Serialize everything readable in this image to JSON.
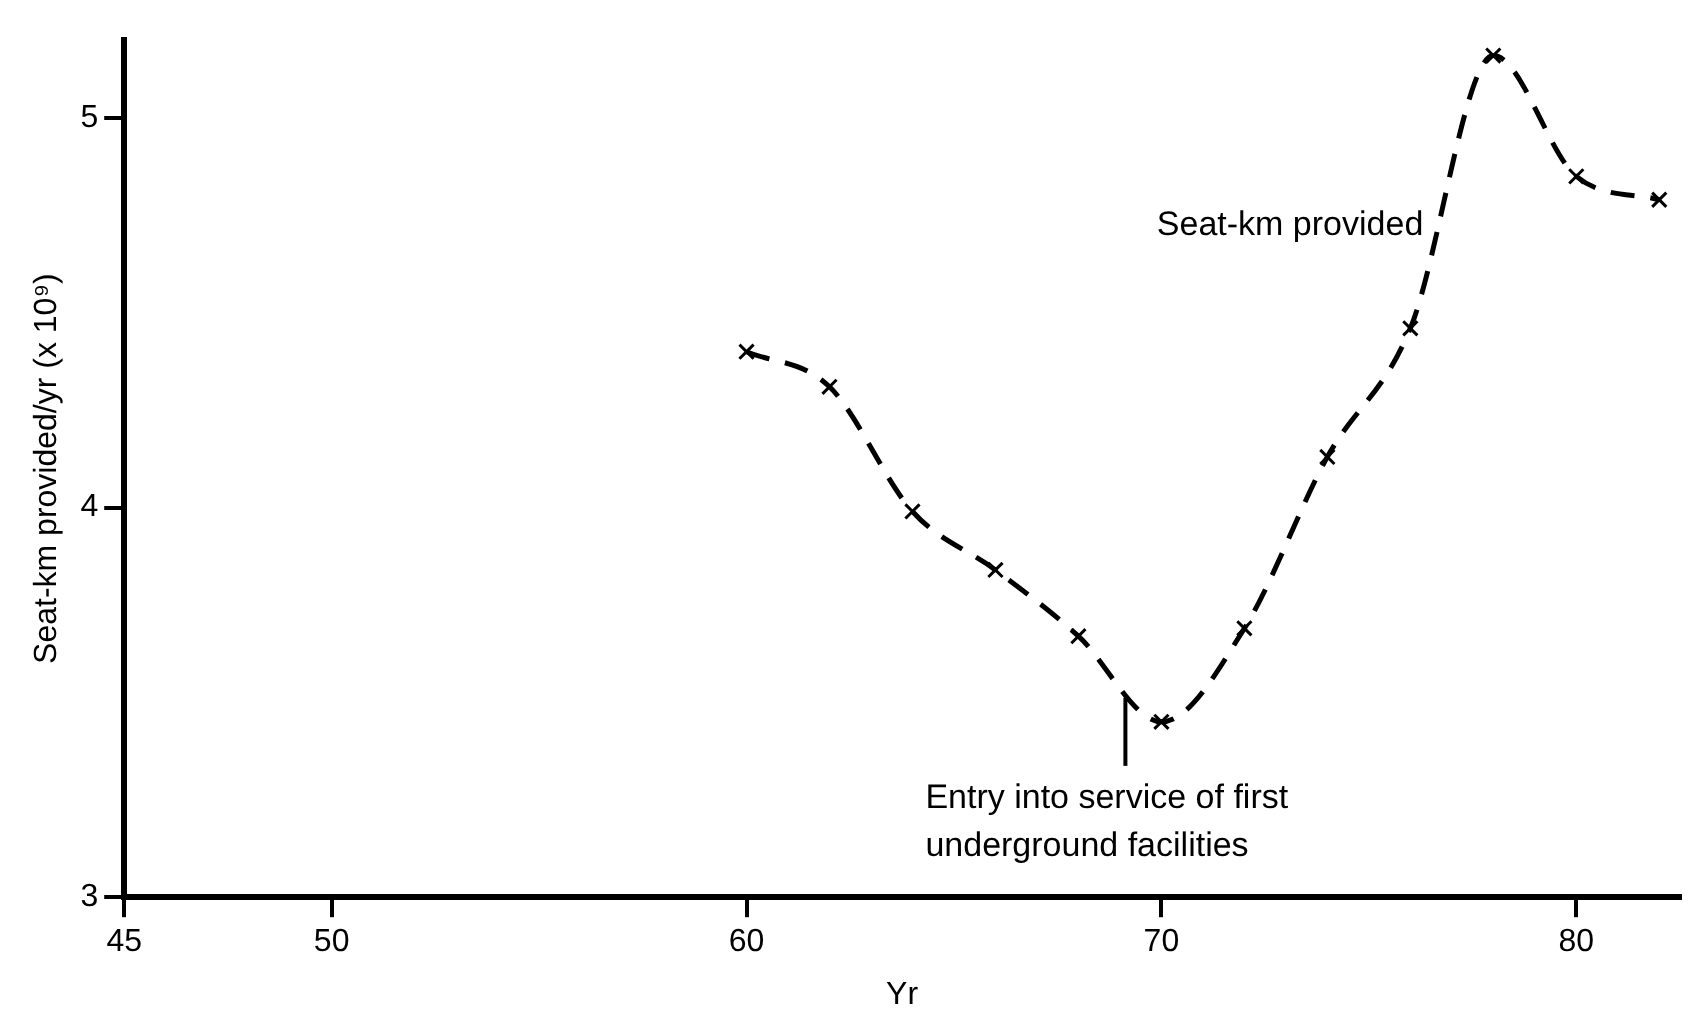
{
  "chart_data": {
    "type": "line",
    "xlabel": "Yr",
    "ylabel": "Seat-km provided/yr (x 10⁹)",
    "x": [
      60,
      62,
      64,
      66,
      68,
      70,
      72,
      74,
      76,
      78,
      80,
      82
    ],
    "series": [
      {
        "name": "Seat-km provided",
        "color": "#000000",
        "values": [
          4.4,
          4.31,
          3.99,
          3.84,
          3.67,
          3.45,
          3.69,
          4.13,
          4.46,
          5.16,
          4.85,
          4.79
        ]
      }
    ],
    "xlim": [
      45,
      82.5
    ],
    "xticks": [
      45,
      50,
      60,
      70,
      80
    ],
    "ylim": [
      3,
      5.2
    ],
    "yticks": [
      3,
      4,
      5
    ],
    "annotations": [
      {
        "text": "Entry into service of first underground facilities",
        "x": 70,
        "y": 3.45
      }
    ],
    "grid": false,
    "legend": false,
    "marker": "cross",
    "line_style": "dashed"
  }
}
